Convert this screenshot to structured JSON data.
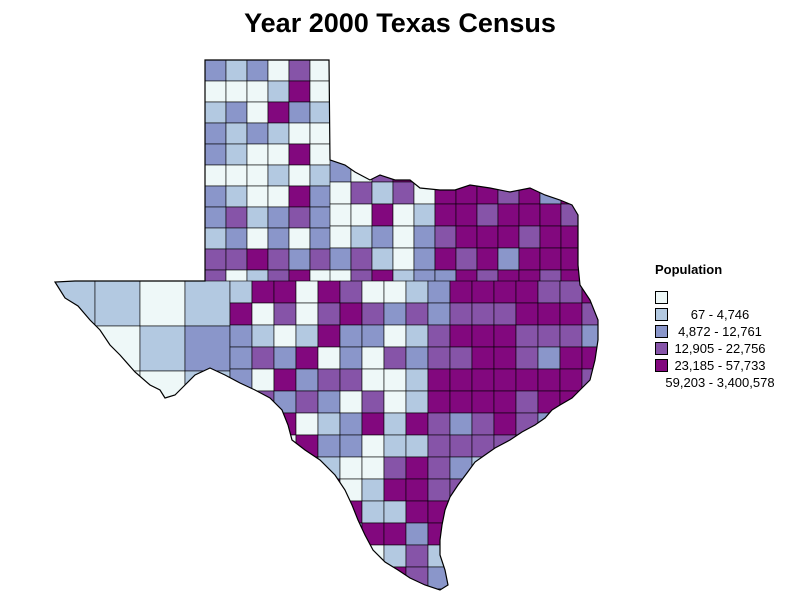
{
  "title": "Year 2000 Texas Census",
  "legend": {
    "title": "Population",
    "placement": "right",
    "classes": [
      {
        "label": "67 - 4,746",
        "color": "#eef8f8"
      },
      {
        "label": "4,872 - 12,761",
        "color": "#b3c9e1"
      },
      {
        "label": "12,905 - 22,756",
        "color": "#8a96ca"
      },
      {
        "label": "23,185 - 57,733",
        "color": "#8654a8"
      },
      {
        "label": "59,203 - 3,400,578",
        "color": "#82087e"
      }
    ]
  },
  "map": {
    "region": "Texas",
    "unit": "county",
    "outline_color": "#000000",
    "sea_color": "#ffffff"
  }
}
